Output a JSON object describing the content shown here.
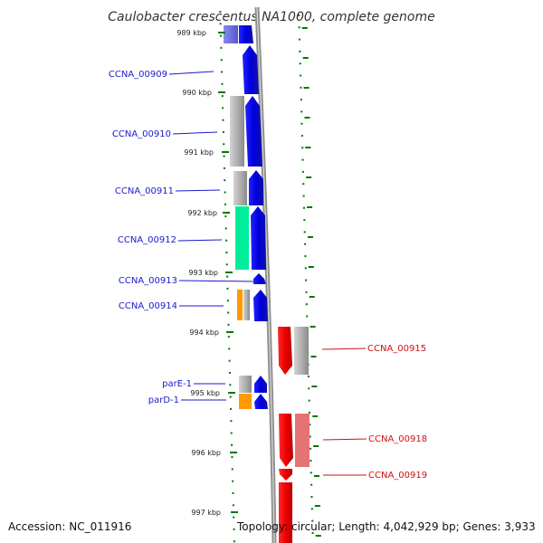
{
  "title": "Caulobacter crescentus NA1000, complete genome",
  "accession": "Accession: NC_011916",
  "topology": "Topology: circular; Length: 4,042,929 bp; Genes: 3,933",
  "scale_ticks": [
    {
      "label": "989 kbp"
    },
    {
      "label": "990 kbp"
    },
    {
      "label": "991 kbp"
    },
    {
      "label": "992 kbp"
    },
    {
      "label": "993 kbp"
    },
    {
      "label": "994 kbp"
    },
    {
      "label": "995 kbp"
    },
    {
      "label": "996 kbp"
    },
    {
      "label": "997 kbp"
    }
  ],
  "genes_forward": [
    {
      "label": "CCNA_00909"
    },
    {
      "label": "CCNA_00910"
    },
    {
      "label": "CCNA_00911"
    },
    {
      "label": "CCNA_00912"
    },
    {
      "label": "CCNA_00913"
    },
    {
      "label": "CCNA_00914"
    },
    {
      "label": "parE-1"
    },
    {
      "label": "parD-1"
    }
  ],
  "genes_reverse": [
    {
      "label": "CCNA_00915"
    },
    {
      "label": "CCNA_00918"
    },
    {
      "label": "CCNA_00919"
    }
  ],
  "colors": {
    "forward_gene": "#0000ee",
    "reverse_gene": "#ee0000",
    "gc_skew": "#00ee99",
    "orange_feature": "#ff9900",
    "backbone": "#888888",
    "tick_marks": "#007700"
  }
}
